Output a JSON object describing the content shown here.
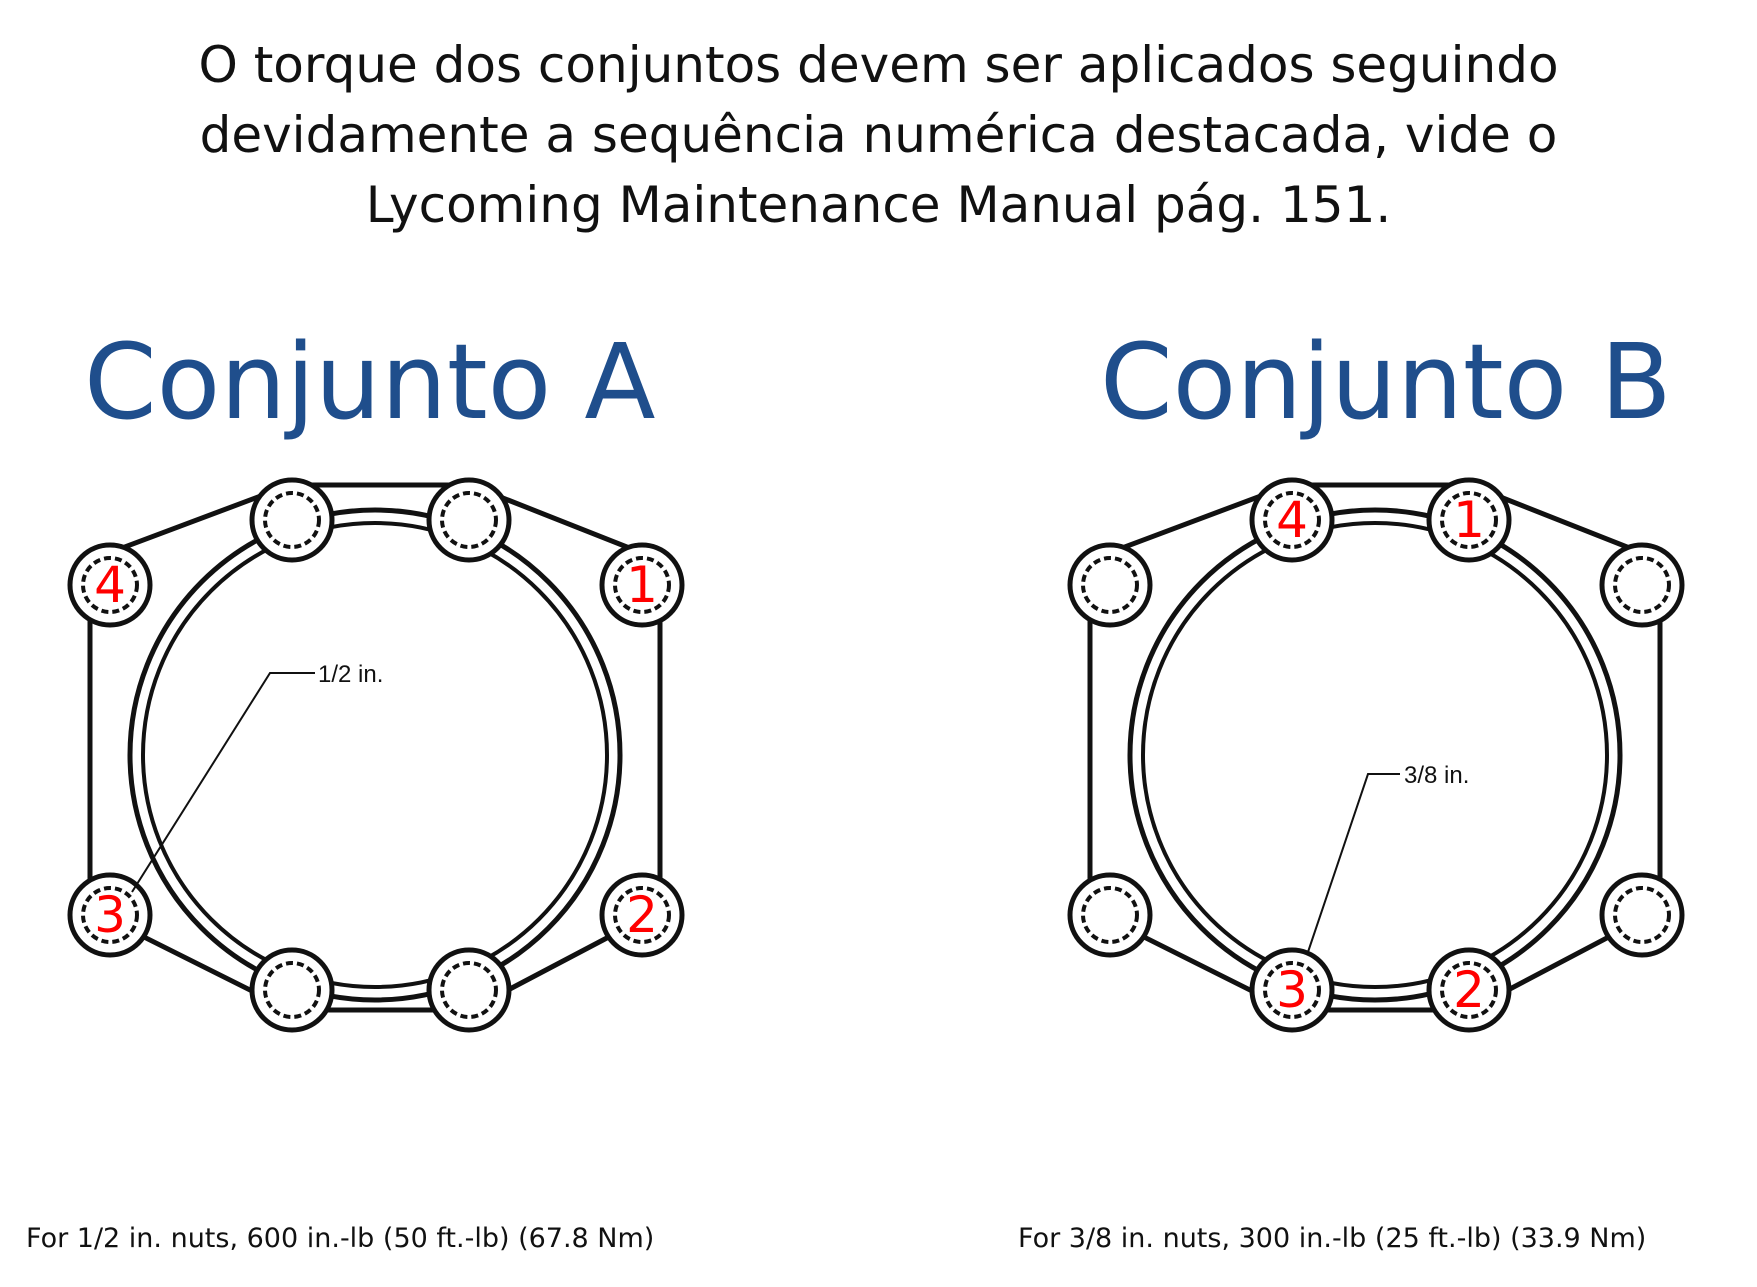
{
  "intro": {
    "lines": [
      "O torque dos conjuntos devem ser aplicados seguindo",
      "devidamente a sequência numérica destacada, vide o",
      "Lycoming Maintenance Manual pág. 151."
    ]
  },
  "sets": [
    {
      "title": "Conjunto A",
      "dimension_label": "1/2 in.",
      "stud_count": 8,
      "torque_sequence": [
        {
          "position": "upper-right",
          "number": "1"
        },
        {
          "position": "lower-right",
          "number": "2"
        },
        {
          "position": "lower-left",
          "number": "3"
        },
        {
          "position": "upper-left",
          "number": "4"
        }
      ],
      "spec": "For 1/2 in. nuts, 600 in.-lb (50 ft.-lb) (67.8 Nm)"
    },
    {
      "title": "Conjunto B",
      "dimension_label": "3/8 in.",
      "stud_count": 8,
      "torque_sequence": [
        {
          "position": "top-right",
          "number": "1"
        },
        {
          "position": "bottom-right",
          "number": "2"
        },
        {
          "position": "bottom-left",
          "number": "3"
        },
        {
          "position": "top-left",
          "number": "4"
        }
      ],
      "spec": "For 3/8 in. nuts, 300 in.-lb (25 ft.-lb) (33.9 Nm)"
    }
  ],
  "colors": {
    "title": "#1f4e8c",
    "sequence_numbers": "#ff0000",
    "line_art": "#111111"
  }
}
